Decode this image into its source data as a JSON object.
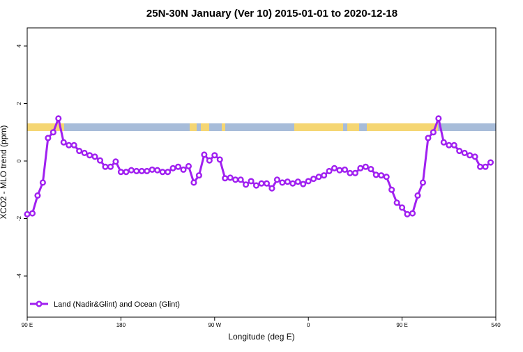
{
  "chart_data": {
    "type": "line",
    "title": "25N-30N January (Ver 10)   2015-01-01 to 2020-12-18",
    "x_label": "Longitude (deg E)",
    "y_label": "XCO2 - MLO trend (ppm)",
    "x": [
      90,
      95,
      100,
      105,
      110,
      115,
      120,
      125,
      130,
      135,
      140,
      145,
      150,
      155,
      160,
      165,
      170,
      175,
      180,
      185,
      190,
      195,
      200,
      205,
      210,
      215,
      220,
      225,
      230,
      235,
      240,
      245,
      250,
      255,
      260,
      265,
      270,
      275,
      280,
      285,
      290,
      295,
      300,
      305,
      310,
      315,
      320,
      325,
      330,
      335,
      340,
      345,
      350,
      355,
      360,
      365,
      370,
      375,
      380,
      385,
      390,
      395,
      400,
      405,
      410,
      415,
      420,
      425,
      430,
      435,
      440,
      445,
      450,
      455,
      460,
      465,
      470,
      475,
      480,
      485,
      490,
      495,
      500,
      505,
      510,
      515,
      520,
      525,
      530,
      535
    ],
    "series": [
      {
        "name": "Land (Nadir&Glint) and Ocean (Glint)",
        "color": "#a020f0",
        "values": [
          -1.85,
          -1.82,
          -1.2,
          -0.75,
          0.8,
          1.0,
          1.48,
          0.65,
          0.55,
          0.55,
          0.35,
          0.28,
          0.2,
          0.15,
          0.02,
          -0.2,
          -0.2,
          -0.02,
          -0.38,
          -0.38,
          -0.32,
          -0.35,
          -0.35,
          -0.35,
          -0.3,
          -0.32,
          -0.38,
          -0.38,
          -0.25,
          -0.2,
          -0.3,
          -0.18,
          -0.75,
          -0.5,
          0.22,
          0.02,
          0.2,
          0.05,
          -0.6,
          -0.58,
          -0.65,
          -0.65,
          -0.82,
          -0.7,
          -0.85,
          -0.78,
          -0.78,
          -0.95,
          -0.65,
          -0.75,
          -0.72,
          -0.78,
          -0.72,
          -0.8,
          -0.7,
          -0.62,
          -0.55,
          -0.5,
          -0.35,
          -0.25,
          -0.32,
          -0.3,
          -0.42,
          -0.42,
          -0.25,
          -0.2,
          -0.28,
          -0.48,
          -0.5,
          -0.55,
          -1.0,
          -1.45,
          -1.62,
          -1.85,
          -1.82,
          -1.2,
          -0.75,
          0.8,
          1.0,
          1.48,
          0.65,
          0.55,
          0.55,
          0.35,
          0.28,
          0.2,
          0.15,
          -0.2,
          -0.2,
          -0.05
        ]
      }
    ],
    "xlim": [
      90,
      540
    ],
    "xticks": [
      {
        "value": 90,
        "label": "90 E"
      },
      180,
      {
        "value": 270,
        "label": "90 W"
      },
      {
        "value": 360,
        "label": "0"
      },
      {
        "value": 450,
        "label": "90 E"
      },
      540
    ],
    "ylim": [
      -5.43,
      4.63
    ],
    "yticks": [
      -4,
      -2,
      0,
      2,
      4
    ],
    "legend": "bottomleft"
  }
}
